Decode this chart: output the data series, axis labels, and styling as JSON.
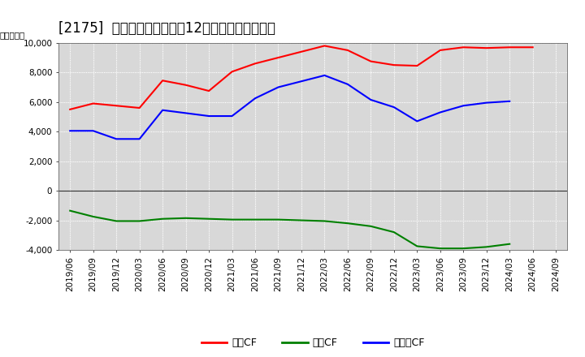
{
  "title": "[2175]  キャッシュフローの12か月移動合計の推移",
  "ylabel": "（百万円）",
  "x_labels": [
    "2019/06",
    "2019/09",
    "2019/12",
    "2020/03",
    "2020/06",
    "2020/09",
    "2020/12",
    "2021/03",
    "2021/06",
    "2021/09",
    "2021/12",
    "2022/03",
    "2022/06",
    "2022/09",
    "2022/12",
    "2023/03",
    "2023/06",
    "2023/09",
    "2023/12",
    "2024/03",
    "2024/06",
    "2024/09"
  ],
  "eigyo_cf": [
    5500,
    5900,
    5750,
    5600,
    7450,
    7150,
    6750,
    8050,
    8600,
    9000,
    9400,
    9800,
    9500,
    8750,
    8500,
    8450,
    9500,
    9700,
    9650,
    9700,
    9700,
    null
  ],
  "toshi_cf": [
    -1350,
    -1750,
    -2050,
    -2050,
    -1900,
    -1850,
    -1900,
    -1950,
    -1950,
    -1950,
    -2000,
    -2050,
    -2200,
    -2400,
    -2800,
    -3750,
    -3900,
    -3900,
    -3800,
    -3600,
    null,
    null
  ],
  "free_cf": [
    4050,
    4050,
    3500,
    3500,
    5450,
    5250,
    5050,
    5050,
    6250,
    7000,
    7400,
    7800,
    7200,
    6150,
    5650,
    4700,
    5300,
    5750,
    5950,
    6050,
    null,
    null
  ],
  "eigyo_label": "営業CF",
  "toshi_label": "投資CF",
  "free_label": "フリーCF",
  "eigyo_color": "#ff0000",
  "toshi_color": "#008000",
  "free_color": "#0000ff",
  "ylim": [
    -4000,
    10000
  ],
  "yticks": [
    -4000,
    -2000,
    0,
    2000,
    4000,
    6000,
    8000,
    10000
  ],
  "background_color": "#ffffff",
  "plot_bg_color": "#d8d8d8",
  "title_fontsize": 12,
  "axis_fontsize": 7.5,
  "legend_fontsize": 9
}
